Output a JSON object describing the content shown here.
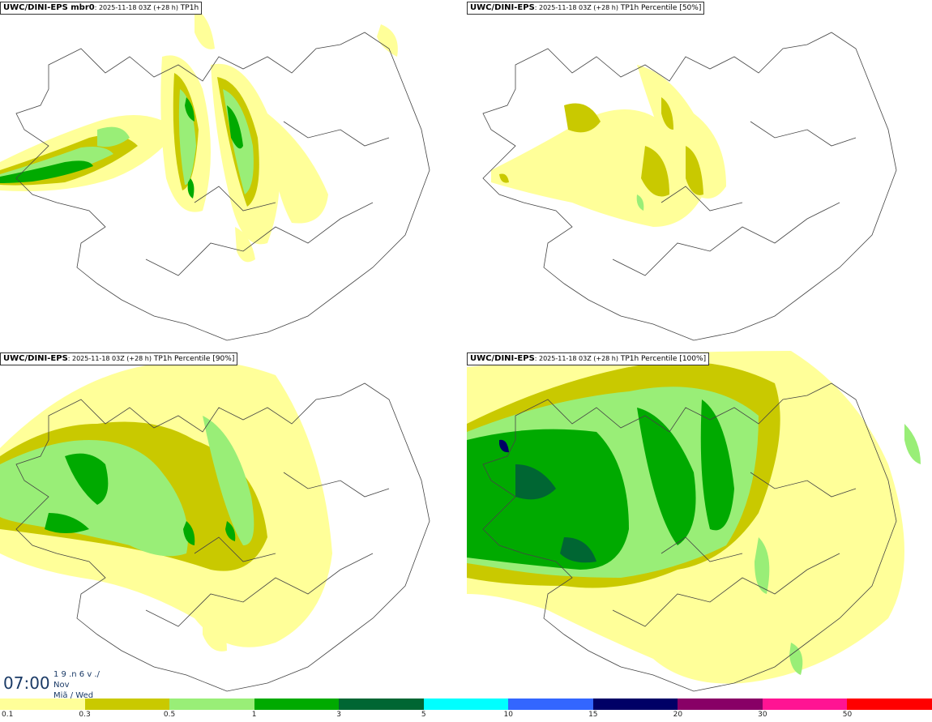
{
  "panels": [
    {
      "model": "UWC/DINI-EPS mbr0",
      "run": ": 2025-11-18 03Z (+28 h)",
      "param": " TP1h"
    },
    {
      "model": "UWC/DINI-EPS",
      "run": ": 2025-11-18 03Z (+28 h)",
      "param": " TP1h Percentile [50%]"
    },
    {
      "model": "UWC/DINI-EPS",
      "run": ": 2025-11-18 03Z (+28 h)",
      "param": " TP1h Percentile [90%]"
    },
    {
      "model": "UWC/DINI-EPS",
      "run": ": 2025-11-18 03Z (+28 h)",
      "param": " TP1h Percentile [100%]"
    }
  ],
  "valid_time": {
    "time": "07:00",
    "line1": "1 9 .n 6 v ./",
    "line2": "Nov",
    "line3": "Miã / Wed"
  },
  "legend": {
    "colors": [
      "#ffff99",
      "#c9c900",
      "#99ee77",
      "#00aa00",
      "#006633",
      "#00ffff",
      "#3366ff",
      "#000066",
      "#880066",
      "#ff1493",
      "#ff0000"
    ],
    "ticks": [
      "0.1",
      "0.3",
      "0.5",
      "1",
      "3",
      "5",
      "10",
      "15",
      "20",
      "30",
      "50"
    ]
  }
}
